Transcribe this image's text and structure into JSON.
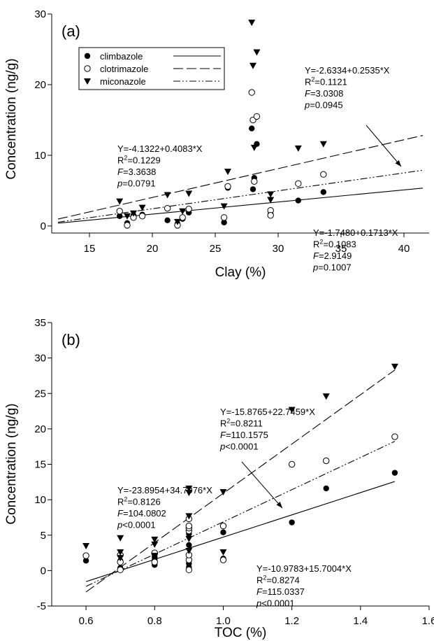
{
  "chart_data": [
    {
      "panel_label": "(a)",
      "type": "scatter",
      "xlabel": "Clay (%)",
      "ylabel": "Concentration (ng/g)",
      "xlim": [
        12,
        42
      ],
      "ylim": [
        -1,
        30
      ],
      "xticks": [
        "15",
        "20",
        "25",
        "30",
        "35",
        "40"
      ],
      "yticks": [
        "0",
        "10",
        "20",
        "30"
      ],
      "legend_position": "top-left",
      "series": [
        {
          "name": "climbazole",
          "marker": "filled-circle",
          "linestyle": "solid",
          "points": [
            [
              17.4,
              1.4
            ],
            [
              18,
              0.4
            ],
            [
              18.5,
              1.5
            ],
            [
              19.2,
              1.6
            ],
            [
              21.2,
              0.8
            ],
            [
              22,
              0.3
            ],
            [
              22.4,
              1.0
            ],
            [
              22.9,
              1.9
            ],
            [
              25.7,
              0.5
            ],
            [
              26,
              5.4
            ],
            [
              27.9,
              13.8
            ],
            [
              28,
              5.2
            ],
            [
              28.1,
              6.8
            ],
            [
              28.3,
              11.6
            ],
            [
              29.4,
              1.7
            ],
            [
              31.6,
              3.6
            ],
            [
              33.6,
              4.8
            ]
          ],
          "fit": {
            "intercept": -1.748,
            "slope": 0.1713,
            "x_range": [
              12.5,
              41.5
            ]
          },
          "annotation": [
            "Y=-1.7480+0.1713*X",
            "R2=0.1083",
            "F=2.9149",
            "p=0.1007"
          ]
        },
        {
          "name": "clotrimazole",
          "marker": "open-circle",
          "linestyle": "long-dash",
          "points": [
            [
              17.4,
              2.1
            ],
            [
              18,
              0.1
            ],
            [
              18.5,
              1.2
            ],
            [
              19.2,
              1.4
            ],
            [
              21.2,
              2.5
            ],
            [
              22,
              0.1
            ],
            [
              22.4,
              1.2
            ],
            [
              22.9,
              2.4
            ],
            [
              25.7,
              1.2
            ],
            [
              26,
              5.6
            ],
            [
              27.9,
              18.9
            ],
            [
              28,
              15
            ],
            [
              28.1,
              6.3
            ],
            [
              28.3,
              15.5
            ],
            [
              29.4,
              2.2
            ],
            [
              29.4,
              1.5
            ],
            [
              31.6,
              6
            ],
            [
              33.6,
              7.3
            ]
          ],
          "fit": {
            "intercept": -4.1322,
            "slope": 0.4083,
            "x_range": [
              12.5,
              41.5
            ]
          },
          "annotation": [
            "Y=-4.1322+0.4083*X",
            "R2=0.1229",
            "F=3.3638",
            "p=0.0791"
          ]
        },
        {
          "name": "miconazole",
          "marker": "filled-triangle-down",
          "linestyle": "dash-dot-dot",
          "points": [
            [
              17.4,
              3.5
            ],
            [
              18,
              1.4
            ],
            [
              18.5,
              1.8
            ],
            [
              19.2,
              2.6
            ],
            [
              21.2,
              4.4
            ],
            [
              22,
              0.6
            ],
            [
              22.4,
              2.1
            ],
            [
              22.9,
              4.6
            ],
            [
              25.7,
              2.8
            ],
            [
              26,
              7.7
            ],
            [
              27.9,
              28.8
            ],
            [
              28,
              22.7
            ],
            [
              28.1,
              11.1
            ],
            [
              28.3,
              24.6
            ],
            [
              29.4,
              4.5
            ],
            [
              29.4,
              3.7
            ],
            [
              31.6,
              11
            ],
            [
              33.6,
              11.6
            ]
          ],
          "fit": {
            "intercept": -2.6334,
            "slope": 0.2535,
            "x_range": [
              12.5,
              41.5
            ]
          },
          "annotation": [
            "Y=-2.6334+0.2535*X",
            "R2=0.1121",
            "F=3.0308",
            "p=0.0945"
          ]
        }
      ]
    },
    {
      "panel_label": "(b)",
      "type": "scatter",
      "xlabel": "TOC (%)",
      "ylabel": "Concentration (ng/g)",
      "xlim": [
        0.5,
        1.6
      ],
      "ylim": [
        -5,
        35
      ],
      "xticks": [
        "0.6",
        "0.8",
        "1.0",
        "1.2",
        "1.4",
        "1.6"
      ],
      "yticks": [
        "-5",
        "0",
        "5",
        "10",
        "15",
        "20",
        "25",
        "30",
        "35"
      ],
      "series": [
        {
          "name": "climbazole",
          "marker": "filled-circle",
          "linestyle": "solid",
          "points": [
            [
              0.6,
              1.4
            ],
            [
              0.7,
              0.4
            ],
            [
              0.7,
              1.4
            ],
            [
              0.8,
              0.8
            ],
            [
              0.8,
              1.5
            ],
            [
              0.8,
              1.9
            ],
            [
              0.9,
              0.5
            ],
            [
              0.9,
              1.0
            ],
            [
              0.9,
              1.6
            ],
            [
              0.9,
              3.6
            ],
            [
              0.9,
              5.2
            ],
            [
              1.0,
              5.4
            ],
            [
              1.0,
              1.7
            ],
            [
              1.2,
              6.8
            ],
            [
              1.3,
              11.6
            ],
            [
              1.5,
              13.8
            ]
          ],
          "fit": {
            "intercept": -10.9783,
            "slope": 15.7004,
            "x_range": [
              0.6,
              1.5
            ]
          },
          "annotation": [
            "Y=-10.9783+15.7004*X",
            "R2=0.8274",
            "F=115.0337",
            "p<0.0001"
          ]
        },
        {
          "name": "clotrimazole",
          "marker": "open-circle",
          "linestyle": "long-dash",
          "points": [
            [
              0.6,
              2.1
            ],
            [
              0.7,
              0.1
            ],
            [
              0.7,
              1.2
            ],
            [
              0.7,
              2.2
            ],
            [
              0.8,
              1.2
            ],
            [
              0.8,
              2.4
            ],
            [
              0.8,
              2.5
            ],
            [
              0.9,
              0.1
            ],
            [
              0.9,
              1.5
            ],
            [
              0.9,
              2.2
            ],
            [
              0.9,
              5.6
            ],
            [
              0.9,
              6.0
            ],
            [
              0.9,
              6.3
            ],
            [
              0.9,
              7.3
            ],
            [
              1.0,
              6.3
            ],
            [
              1.0,
              1.5
            ],
            [
              1.2,
              15
            ],
            [
              1.3,
              15.5
            ],
            [
              1.5,
              18.9
            ]
          ],
          "fit": {
            "intercept": -23.8954,
            "slope": 34.7976,
            "x_range": [
              0.6,
              1.5
            ]
          },
          "annotation": [
            "Y=-23.8954+34.7976*X",
            "R2=0.8126",
            "F=104.0802",
            "p<0.0001"
          ]
        },
        {
          "name": "miconazole",
          "marker": "filled-triangle-down",
          "linestyle": "dash-dot-dot",
          "points": [
            [
              0.6,
              3.5
            ],
            [
              0.7,
              1.8
            ],
            [
              0.7,
              2.6
            ],
            [
              0.7,
              4.6
            ],
            [
              0.8,
              3.7
            ],
            [
              0.8,
              4.4
            ],
            [
              0.8,
              2.1
            ],
            [
              0.9,
              11.6
            ],
            [
              0.9,
              11.0
            ],
            [
              0.9,
              7.7
            ],
            [
              0.9,
              4.5
            ],
            [
              0.9,
              2.8
            ],
            [
              1.0,
              11.1
            ],
            [
              1.0,
              2.6
            ],
            [
              1.2,
              22.7
            ],
            [
              1.3,
              24.6
            ],
            [
              1.5,
              28.8
            ]
          ],
          "fit": {
            "intercept": -15.8765,
            "slope": 22.7459,
            "x_range": [
              0.6,
              1.5
            ]
          },
          "annotation": [
            "Y=-15.8765+22.7459*X",
            "R2=0.8211",
            "F=110.1575",
            "p<0.0001"
          ]
        }
      ]
    }
  ]
}
